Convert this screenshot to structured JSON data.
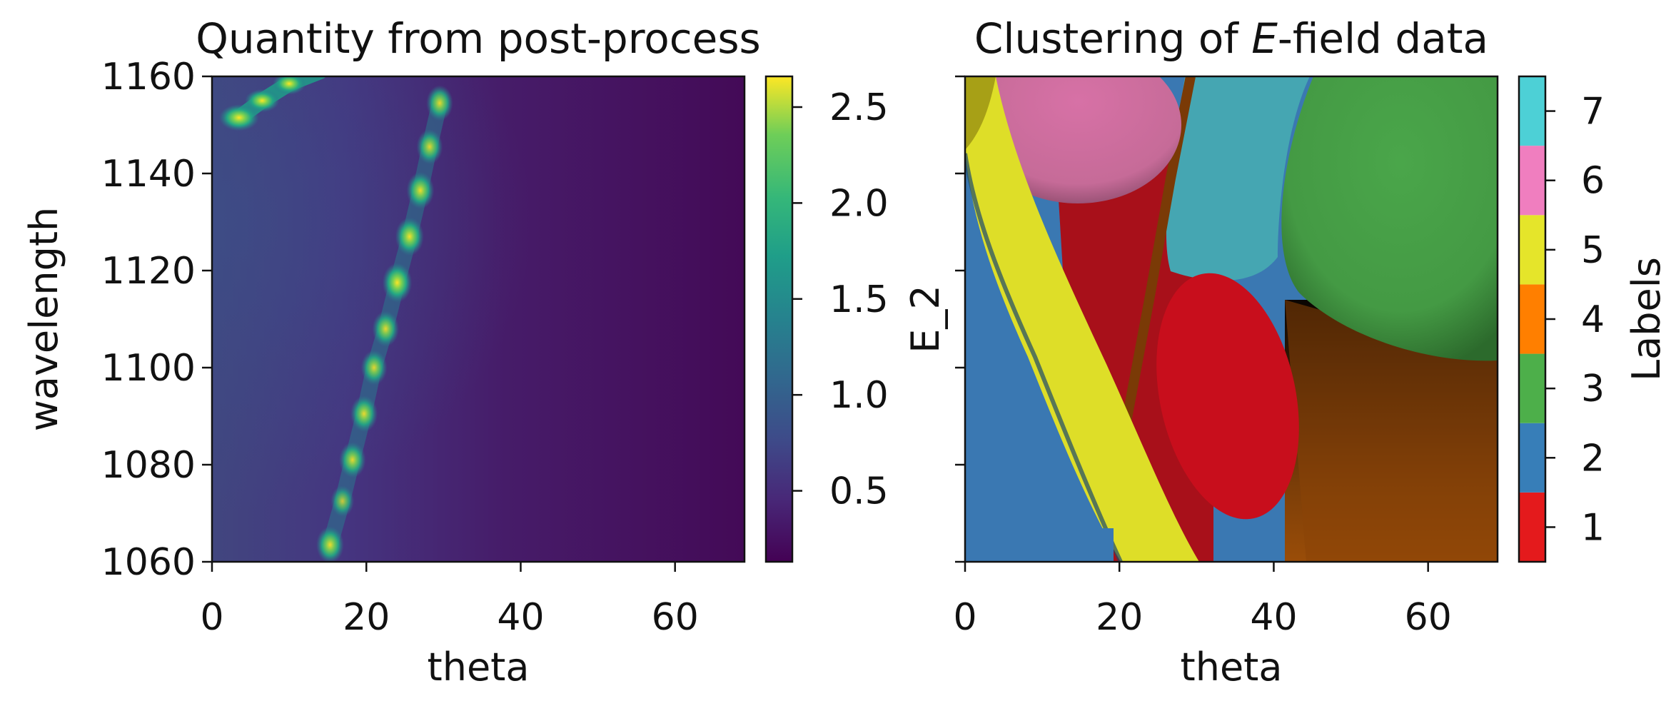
{
  "chart_data": [
    {
      "type": "heatmap",
      "title": "Quantity from post-process",
      "xlabel": "theta",
      "ylabel": "wavelength",
      "xlim": [
        0,
        69
      ],
      "ylim": [
        1060,
        1160
      ],
      "xticks": [
        0,
        20,
        40,
        60
      ],
      "yticks": [
        1060,
        1080,
        1100,
        1120,
        1140,
        1160
      ],
      "colormap": "viridis",
      "colorbar": {
        "range": [
          0.13,
          2.66
        ],
        "ticks": [
          "0.5",
          "1.0",
          "1.5",
          "2.0",
          "2.5"
        ]
      },
      "background_level": "low (~0.2-0.6), decreasing toward high theta",
      "resonance_band": {
        "points": [
          {
            "theta": 15.3,
            "wavelength": 1063.5,
            "value": 2.2
          },
          {
            "theta": 16.9,
            "wavelength": 1072.5,
            "value": 1.3
          },
          {
            "theta": 18.2,
            "wavelength": 1081.0,
            "value": 2.0
          },
          {
            "theta": 19.7,
            "wavelength": 1090.5,
            "value": 2.1
          },
          {
            "theta": 21.0,
            "wavelength": 1100.0,
            "value": 1.9
          },
          {
            "theta": 22.5,
            "wavelength": 1108.0,
            "value": 2.0
          },
          {
            "theta": 24.0,
            "wavelength": 1117.5,
            "value": 2.6
          },
          {
            "theta": 25.6,
            "wavelength": 1127.0,
            "value": 2.4
          },
          {
            "theta": 27.0,
            "wavelength": 1136.5,
            "value": 2.2
          },
          {
            "theta": 28.2,
            "wavelength": 1145.5,
            "value": 1.9
          },
          {
            "theta": 29.5,
            "wavelength": 1154.5,
            "value": 2.0
          }
        ],
        "upper_left_arc": [
          {
            "theta": 3.5,
            "wavelength": 1151.5,
            "value": 2.5
          },
          {
            "theta": 6.5,
            "wavelength": 1155.0,
            "value": 1.8
          },
          {
            "theta": 10.0,
            "wavelength": 1158.5,
            "value": 1.6
          }
        ]
      }
    },
    {
      "type": "heatmap",
      "title_prefix": "Clustering of ",
      "title_italic": "E",
      "title_suffix": "-field data",
      "xlabel": "theta",
      "ylabel": "E_2",
      "xlim": [
        0,
        69
      ],
      "xticks": [
        0,
        20,
        40,
        60
      ],
      "colorbar": {
        "label": "Labels",
        "ticks": [
          "1",
          "2",
          "3",
          "4",
          "5",
          "6",
          "7"
        ],
        "colors": [
          "#e41a1c",
          "#377eb8",
          "#4daf4a",
          "#ff7f00",
          "#e5e52a",
          "#f07ebf",
          "#4dd0d6"
        ]
      },
      "regions": [
        {
          "label": 2,
          "description": "left band along theta 0-15"
        },
        {
          "label": 5,
          "description": "diagonal band from top-left to bottom center"
        },
        {
          "label": 6,
          "description": "upper left blob"
        },
        {
          "label": 1,
          "description": "central blobs"
        },
        {
          "label": 7,
          "description": "upper center region"
        },
        {
          "label": 3,
          "description": "upper right disc"
        },
        {
          "label": 4,
          "description": "lower right region"
        }
      ]
    }
  ]
}
